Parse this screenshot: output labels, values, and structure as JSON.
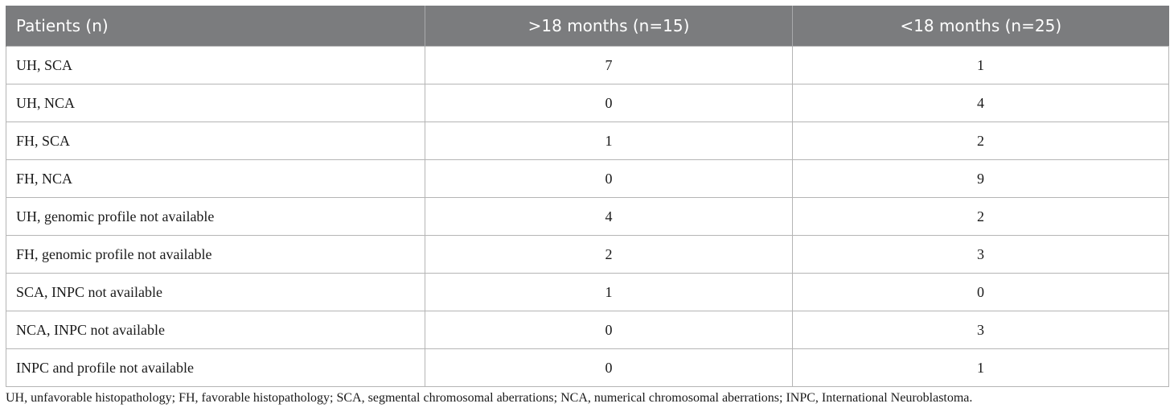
{
  "table": {
    "headers": [
      "Patients (n)",
      ">18 months (n=15)",
      "<18 months (n=25)"
    ],
    "rows": [
      {
        "label": "UH, SCA",
        "gt18": "7",
        "lt18": "1"
      },
      {
        "label": "UH, NCA",
        "gt18": "0",
        "lt18": "4"
      },
      {
        "label": "FH, SCA",
        "gt18": "1",
        "lt18": "2"
      },
      {
        "label": "FH, NCA",
        "gt18": "0",
        "lt18": "9"
      },
      {
        "label": "UH, genomic profile not available",
        "gt18": "4",
        "lt18": "2"
      },
      {
        "label": "FH, genomic profile not available",
        "gt18": "2",
        "lt18": "3"
      },
      {
        "label": "SCA, INPC not available",
        "gt18": "1",
        "lt18": "0"
      },
      {
        "label": "NCA, INPC not available",
        "gt18": "0",
        "lt18": "3"
      },
      {
        "label": "INPC and profile not available",
        "gt18": "0",
        "lt18": "1"
      }
    ]
  },
  "footnote": "UH, unfavorable histopathology; FH, favorable histopathology; SCA, segmental chromosomal aberrations; NCA, numerical chromosomal aberrations; INPC, International Neuroblastoma."
}
